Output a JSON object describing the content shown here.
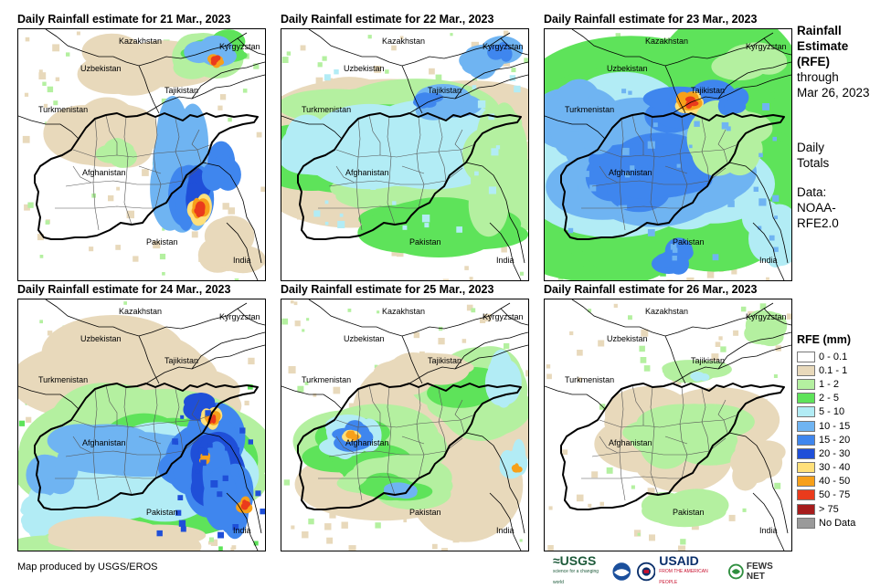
{
  "panels": [
    {
      "title": "Daily Rainfall estimate for 21 Mar., 2023"
    },
    {
      "title": "Daily Rainfall estimate for 22 Mar., 2023"
    },
    {
      "title": "Daily Rainfall estimate for 23 Mar., 2023"
    },
    {
      "title": "Daily Rainfall estimate for 24 Mar., 2023"
    },
    {
      "title": "Daily Rainfall estimate for 25 Mar., 2023"
    },
    {
      "title": "Daily Rainfall estimate for 26 Mar., 2023"
    }
  ],
  "map_labels": {
    "kazakhstan": "Kazakhstan",
    "kyrgyzstan": "Kyrgyzstan",
    "uzbekistan": "Uzbekistan",
    "tajikistan": "Tajikistan",
    "turkmenistan": "Turkmenistan",
    "afghanistan": "Afghanistan",
    "pakistan": "Pakistan",
    "india": "India"
  },
  "info": {
    "title_line1": "Rainfall",
    "title_line2": "Estimate",
    "title_line3": "(RFE)",
    "through": "through",
    "date": "Mar 26, 2023",
    "totals_line1": "Daily",
    "totals_line2": "Totals",
    "data_line1": "Data:",
    "data_line2": "NOAA-",
    "data_line3": "RFE2.0"
  },
  "legend": {
    "title": "RFE (mm)",
    "items": [
      {
        "label": "0 - 0.1",
        "color": "#ffffff"
      },
      {
        "label": "0.1 - 1",
        "color": "#e8d9bb"
      },
      {
        "label": "1 - 2",
        "color": "#b4f0a0"
      },
      {
        "label": "2 - 5",
        "color": "#5ee35a"
      },
      {
        "label": "5 - 10",
        "color": "#b2ecf5"
      },
      {
        "label": "10 - 15",
        "color": "#6fb4f2"
      },
      {
        "label": "15 - 20",
        "color": "#3f86ee"
      },
      {
        "label": "20 - 30",
        "color": "#1f4fd8"
      },
      {
        "label": "30 - 40",
        "color": "#ffe07a"
      },
      {
        "label": "40 - 50",
        "color": "#f7a01a"
      },
      {
        "label": "50 - 75",
        "color": "#ea3b1c"
      },
      {
        "label": "> 75",
        "color": "#a61c1c"
      },
      {
        "label": "No Data",
        "color": "#9a9a9a"
      }
    ]
  },
  "credit": "Map produced by USGS/EROS",
  "logos": {
    "usgs": "≈USGS",
    "usgs_tag": "science for a changing world",
    "usaid": "USAID",
    "usaid_tag": "FROM THE AMERICAN PEOPLE",
    "fews": "FEWS NET"
  }
}
